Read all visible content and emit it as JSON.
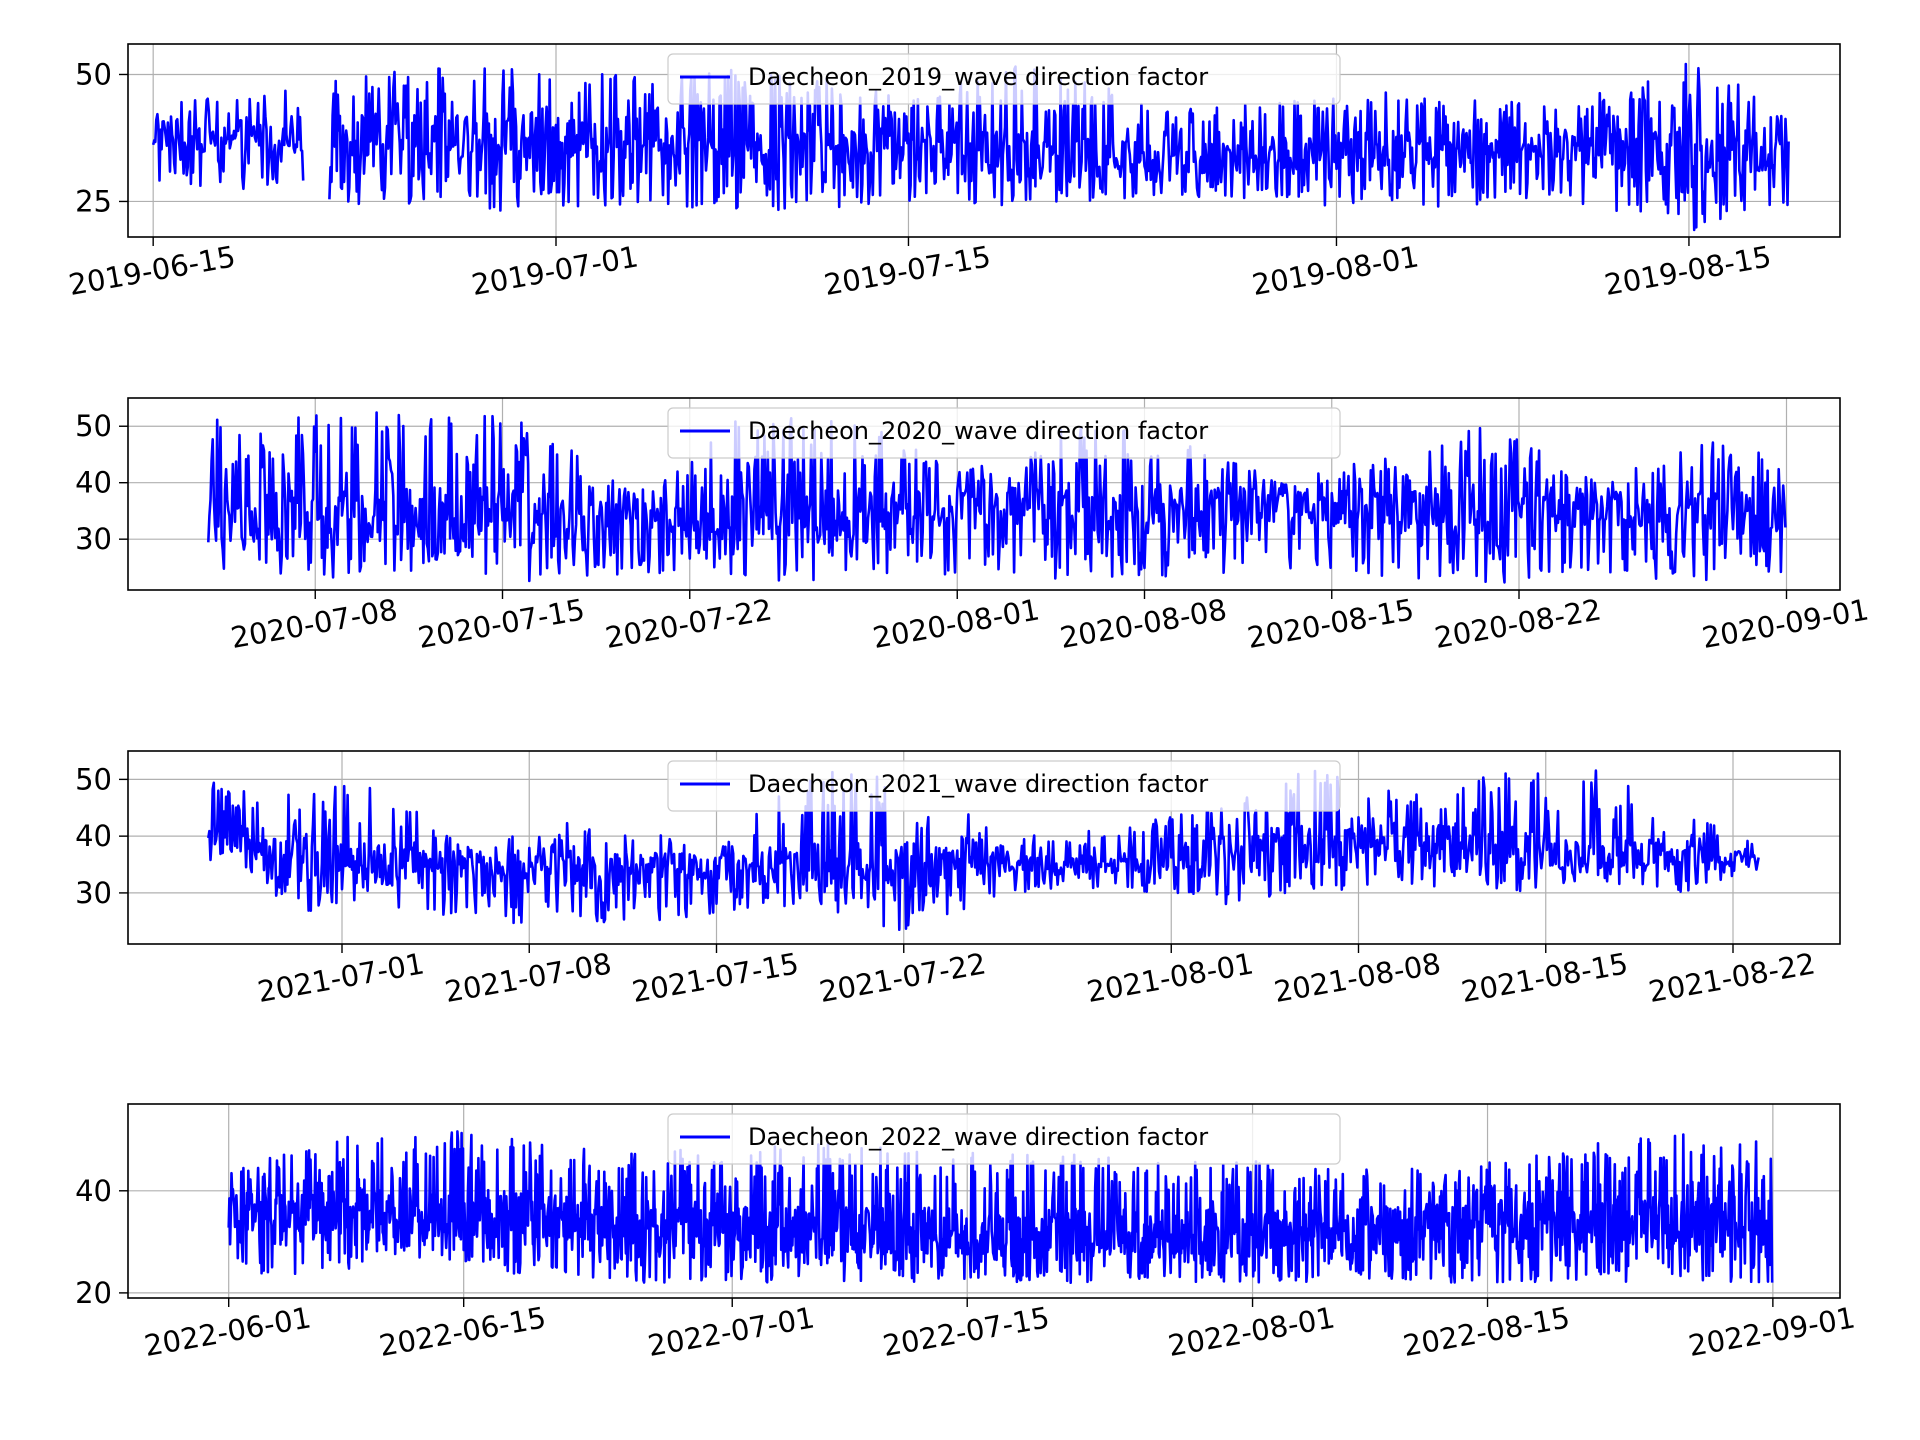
{
  "chart_data": [
    {
      "type": "line",
      "title": "",
      "xlabel": "",
      "ylabel": "",
      "legend_placement": "upper-center",
      "grid": true,
      "series": [
        {
          "name": "Daecheon_2019_wave direction factor",
          "color": "#0000ff"
        }
      ],
      "x_range": [
        "2019-06-14",
        "2019-08-21"
      ],
      "ylim": [
        18,
        56
      ],
      "x_ticks": [
        "2019-06-15",
        "2019-07-01",
        "2019-07-15",
        "2019-08-01",
        "2019-08-15"
      ],
      "y_ticks": [
        25,
        50
      ],
      "data_span": [
        "2019-06-15",
        "2019-08-19"
      ],
      "gaps": [
        [
          "2019-06-21",
          "2019-06-22"
        ]
      ],
      "envelope": [
        [
          "2019-06-15",
          26,
          44
        ],
        [
          "2019-06-20",
          27,
          47
        ],
        [
          "2019-06-25",
          23,
          51
        ],
        [
          "2019-07-01",
          23,
          52
        ],
        [
          "2019-07-05",
          24,
          50
        ],
        [
          "2019-07-10",
          23,
          52
        ],
        [
          "2019-07-15",
          25,
          45
        ],
        [
          "2019-07-20",
          24,
          53
        ],
        [
          "2019-07-25",
          26,
          44
        ],
        [
          "2019-07-30",
          25,
          45
        ],
        [
          "2019-08-01",
          24,
          50
        ],
        [
          "2019-08-05",
          24,
          46
        ],
        [
          "2019-08-10",
          25,
          44
        ],
        [
          "2019-08-15",
          19,
          53
        ],
        [
          "2019-08-19",
          24,
          44
        ]
      ],
      "baseline": [
        [
          "2019-06-15",
          38
        ],
        [
          "2019-06-25",
          38
        ],
        [
          "2019-07-05",
          37
        ],
        [
          "2019-07-15",
          36
        ],
        [
          "2019-07-25",
          33
        ],
        [
          "2019-08-01",
          35
        ],
        [
          "2019-08-10",
          36
        ],
        [
          "2019-08-19",
          34
        ]
      ]
    },
    {
      "type": "line",
      "title": "",
      "xlabel": "",
      "ylabel": "",
      "legend_placement": "upper-center",
      "grid": true,
      "series": [
        {
          "name": "Daecheon_2020_wave direction factor",
          "color": "#0000ff"
        }
      ],
      "x_range": [
        "2020-07-01",
        "2020-09-03"
      ],
      "ylim": [
        21,
        55
      ],
      "x_ticks": [
        "2020-07-08",
        "2020-07-15",
        "2020-07-22",
        "2020-08-01",
        "2020-08-08",
        "2020-08-15",
        "2020-08-22",
        "2020-09-01"
      ],
      "y_ticks": [
        30,
        40,
        50
      ],
      "data_span": [
        "2020-07-04",
        "2020-09-01"
      ],
      "gaps": [],
      "envelope": [
        [
          "2020-07-04",
          25,
          52
        ],
        [
          "2020-07-08",
          23,
          52
        ],
        [
          "2020-07-12",
          23,
          53
        ],
        [
          "2020-07-16",
          22,
          52
        ],
        [
          "2020-07-20",
          24,
          38
        ],
        [
          "2020-07-24",
          22,
          52
        ],
        [
          "2020-07-28",
          23,
          52
        ],
        [
          "2020-08-01",
          23,
          42
        ],
        [
          "2020-08-05",
          23,
          50
        ],
        [
          "2020-08-09",
          23,
          50
        ],
        [
          "2020-08-13",
          25,
          40
        ],
        [
          "2020-08-17",
          23,
          45
        ],
        [
          "2020-08-21",
          22,
          51
        ],
        [
          "2020-08-25",
          24,
          40
        ],
        [
          "2020-08-29",
          22,
          48
        ],
        [
          "2020-09-01",
          24,
          44
        ]
      ],
      "baseline": [
        [
          "2020-07-04",
          34
        ],
        [
          "2020-07-15",
          34
        ],
        [
          "2020-07-22",
          33
        ],
        [
          "2020-08-01",
          35
        ],
        [
          "2020-08-10",
          36
        ],
        [
          "2020-08-18",
          35
        ],
        [
          "2020-08-25",
          35
        ],
        [
          "2020-09-01",
          34
        ]
      ]
    },
    {
      "type": "line",
      "title": "",
      "xlabel": "",
      "ylabel": "",
      "legend_placement": "upper-center",
      "grid": true,
      "series": [
        {
          "name": "Daecheon_2021_wave direction factor",
          "color": "#0000ff"
        }
      ],
      "x_range": [
        "2021-06-23",
        "2021-08-26"
      ],
      "ylim": [
        21,
        55
      ],
      "x_ticks": [
        "2021-07-01",
        "2021-07-08",
        "2021-07-15",
        "2021-07-22",
        "2021-08-01",
        "2021-08-08",
        "2021-08-15",
        "2021-08-22"
      ],
      "y_ticks": [
        30,
        40,
        50
      ],
      "data_span": [
        "2021-06-26",
        "2021-08-23"
      ],
      "gaps": [],
      "envelope": [
        [
          "2021-06-26",
          35,
          50
        ],
        [
          "2021-06-30",
          26,
          48
        ],
        [
          "2021-07-02",
          28,
          50
        ],
        [
          "2021-07-06",
          25,
          38
        ],
        [
          "2021-07-10",
          24,
          44
        ],
        [
          "2021-07-15",
          26,
          38
        ],
        [
          "2021-07-18",
          28,
          52
        ],
        [
          "2021-07-22",
          23,
          50
        ],
        [
          "2021-07-26",
          30,
          40
        ],
        [
          "2021-07-30",
          31,
          42
        ],
        [
          "2021-08-03",
          28,
          46
        ],
        [
          "2021-08-06",
          30,
          52
        ],
        [
          "2021-08-10",
          31,
          48
        ],
        [
          "2021-08-14",
          30,
          52
        ],
        [
          "2021-08-17",
          32,
          52
        ],
        [
          "2021-08-20",
          30,
          45
        ],
        [
          "2021-08-23",
          34,
          39
        ]
      ],
      "baseline": [
        [
          "2021-06-26",
          40
        ],
        [
          "2021-07-02",
          35
        ],
        [
          "2021-07-10",
          34
        ],
        [
          "2021-07-18",
          35
        ],
        [
          "2021-07-26",
          35
        ],
        [
          "2021-08-01",
          36
        ],
        [
          "2021-08-08",
          40
        ],
        [
          "2021-08-15",
          38
        ],
        [
          "2021-08-23",
          36
        ]
      ]
    },
    {
      "type": "line",
      "title": "",
      "xlabel": "",
      "ylabel": "",
      "legend_placement": "upper-center",
      "grid": true,
      "series": [
        {
          "name": "Daecheon_2022_wave direction factor",
          "color": "#0000ff"
        }
      ],
      "x_range": [
        "2022-05-26",
        "2022-09-05"
      ],
      "ylim": [
        19,
        57
      ],
      "x_ticks": [
        "2022-06-01",
        "2022-06-15",
        "2022-07-01",
        "2022-07-15",
        "2022-08-01",
        "2022-08-15",
        "2022-09-01"
      ],
      "y_ticks": [
        20,
        40
      ],
      "data_span": [
        "2022-06-01",
        "2022-09-01"
      ],
      "gaps": [],
      "envelope": [
        [
          "2022-06-01",
          23,
          44
        ],
        [
          "2022-06-07",
          24,
          50
        ],
        [
          "2022-06-13",
          27,
          53
        ],
        [
          "2022-06-19",
          23,
          50
        ],
        [
          "2022-06-25",
          22,
          48
        ],
        [
          "2022-07-01",
          22,
          48
        ],
        [
          "2022-07-07",
          22,
          50
        ],
        [
          "2022-07-13",
          22,
          48
        ],
        [
          "2022-07-19",
          22,
          47
        ],
        [
          "2022-07-25",
          22,
          48
        ],
        [
          "2022-08-01",
          22,
          46
        ],
        [
          "2022-08-07",
          22,
          44
        ],
        [
          "2022-08-13",
          22,
          45
        ],
        [
          "2022-08-19",
          22,
          48
        ],
        [
          "2022-08-25",
          22,
          52
        ],
        [
          "2022-09-01",
          22,
          50
        ]
      ],
      "baseline": [
        [
          "2022-06-01",
          36
        ],
        [
          "2022-06-15",
          36
        ],
        [
          "2022-07-01",
          33
        ],
        [
          "2022-07-15",
          32
        ],
        [
          "2022-08-01",
          32
        ],
        [
          "2022-08-15",
          34
        ],
        [
          "2022-09-01",
          34
        ]
      ]
    }
  ]
}
